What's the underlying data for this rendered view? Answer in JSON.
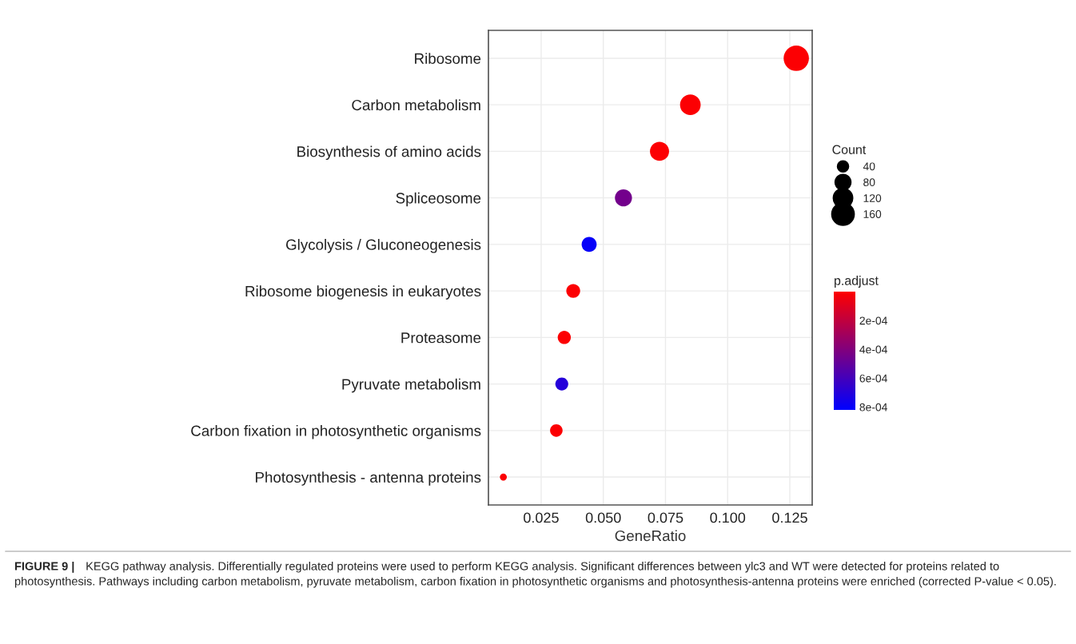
{
  "chart_data": {
    "type": "bubble",
    "xlabel": "GeneRatio",
    "categories": [
      "Ribosome",
      "Carbon metabolism",
      "Biosynthesis of amino acids",
      "Spliceosome",
      "Glycolysis / Gluconeogenesis",
      "Ribosome biogenesis in eukaryotes",
      "Proteasome",
      "Pyruvate metabolism",
      "Carbon fixation in photosynthetic organisms",
      "Photosynthesis - antenna proteins"
    ],
    "orientation": "horizontal",
    "values": [
      0.1276,
      0.085,
      0.0726,
      0.0581,
      0.0443,
      0.0379,
      0.0343,
      0.0333,
      0.0311,
      0.0098
    ],
    "sizes": [
      200,
      133,
      114,
      91,
      70,
      60,
      54,
      52,
      49,
      15
    ],
    "size_legend": [
      40,
      80,
      120,
      160
    ],
    "legend_title": "Count",
    "cvalues": [
      1e-05,
      1e-05,
      1e-05,
      0.00045,
      0.0008,
      1e-05,
      1e-05,
      0.0007,
      1e-05,
      1e-05
    ],
    "clabel": "p.adjust",
    "clim": [
      0,
      0.00082
    ],
    "cticks": [
      {
        "value": 0.0002,
        "label": "2e-04"
      },
      {
        "value": 0.0004,
        "label": "4e-04"
      },
      {
        "value": 0.0006,
        "label": "6e-04"
      },
      {
        "value": 0.0008,
        "label": "8e-04"
      }
    ],
    "xlim": [
      0.0038,
      0.134
    ],
    "xticks": [
      {
        "value": 0.025,
        "label": "0.025"
      },
      {
        "value": 0.05,
        "label": "0.050"
      },
      {
        "value": 0.075,
        "label": "0.075"
      },
      {
        "value": 0.1,
        "label": "0.100"
      },
      {
        "value": 0.125,
        "label": "0.125"
      }
    ],
    "grid": true,
    "annotations": [
      "FIGURE 9 |",
      "KEGG pathway analysis. Differentially regulated proteins were used to perform KEGG analysis. Significant differences between ylc3 and WT were detected for proteins related to photosynthesis. Pathways including carbon metabolism, pyruvate metabolism, carbon fixation in photosynthetic organisms and photosynthesis-antenna proteins were enriched (corrected P-value < 0.05)."
    ]
  }
}
